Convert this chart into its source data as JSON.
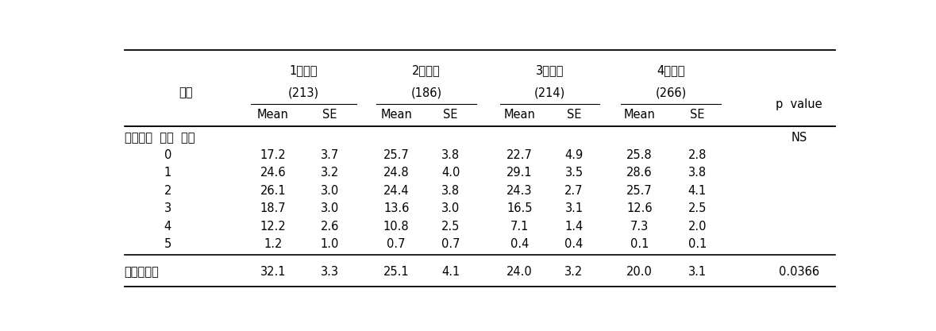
{
  "col_header_row1_labels": [
    "1사분위",
    "2사분위",
    "3사분위",
    "4사분위"
  ],
  "col_header_row2_labels": [
    "(213)",
    "(186)",
    "(214)",
    "(266)"
  ],
  "col_header_row3_item": "항목",
  "col_header_row3_pvalue": "p  value",
  "mean_se": [
    "Mean",
    "SE"
  ],
  "section_label": "위험요인  보유  갯수",
  "section_pvalue": "NS",
  "rows": [
    [
      "0",
      "17.2",
      "3.7",
      "25.7",
      "3.8",
      "22.7",
      "4.9",
      "25.8",
      "2.8"
    ],
    [
      "1",
      "24.6",
      "3.2",
      "24.8",
      "4.0",
      "29.1",
      "3.5",
      "28.6",
      "3.8"
    ],
    [
      "2",
      "26.1",
      "3.0",
      "24.4",
      "3.8",
      "24.3",
      "2.7",
      "25.7",
      "4.1"
    ],
    [
      "3",
      "18.7",
      "3.0",
      "13.6",
      "3.0",
      "16.5",
      "3.1",
      "12.6",
      "2.5"
    ],
    [
      "4",
      "12.2",
      "2.6",
      "10.8",
      "2.5",
      "7.1",
      "1.4",
      "7.3",
      "2.0"
    ],
    [
      "5",
      "1.2",
      "1.0",
      "0.7",
      "0.7",
      "0.4",
      "0.4",
      "0.1",
      "0.1"
    ]
  ],
  "footer_label": "대사증후군",
  "footer_row": [
    "32.1",
    "3.3",
    "25.1",
    "4.1",
    "24.0",
    "3.2",
    "20.0",
    "3.1"
  ],
  "footer_pvalue": "0.0366"
}
